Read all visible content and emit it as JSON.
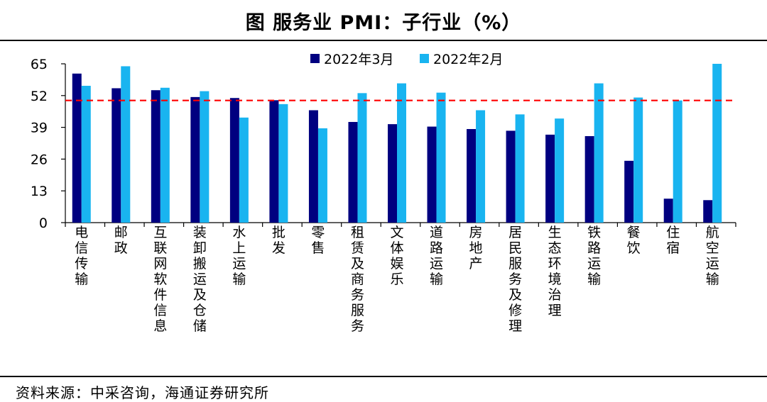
{
  "title": "图  服务业 PMI：子行业（%）",
  "source": "资料来源：中采咨询，海通证券研究所",
  "chart_data": {
    "type": "bar",
    "title": "图  服务业 PMI：子行业（%）",
    "xlabel": "",
    "ylabel": "",
    "ylim": [
      0,
      65
    ],
    "yticks": [
      0,
      13,
      26,
      39,
      52,
      65
    ],
    "grid": false,
    "legend_position": "top-center",
    "reference_line": {
      "value": 50,
      "color": "#ff0000",
      "style": "dashed"
    },
    "categories": [
      "电信传输",
      "邮政",
      "互联网软件信息",
      "装卸搬运及仓储",
      "水上运输",
      "批发",
      "零售",
      "租赁及商务服务",
      "文体娱乐",
      "道路运输",
      "房地产",
      "居民服务及修理",
      "生态环境治理",
      "铁路运输",
      "餐饮",
      "住宿",
      "航空运输"
    ],
    "series": [
      {
        "name": "2022年3月",
        "color": "#000080",
        "values": [
          61.0,
          55.0,
          54.2,
          51.4,
          51.0,
          50.1,
          46.0,
          41.2,
          40.3,
          39.3,
          38.3,
          37.6,
          36.0,
          35.4,
          25.3,
          9.8,
          9.2
        ]
      },
      {
        "name": "2022年2月",
        "color": "#19b4f0",
        "values": [
          56.0,
          64.0,
          55.2,
          53.8,
          43.0,
          48.5,
          38.6,
          53.0,
          57.0,
          53.2,
          46.0,
          44.3,
          42.6,
          57.0,
          51.2,
          50.0,
          65.0
        ]
      }
    ]
  }
}
